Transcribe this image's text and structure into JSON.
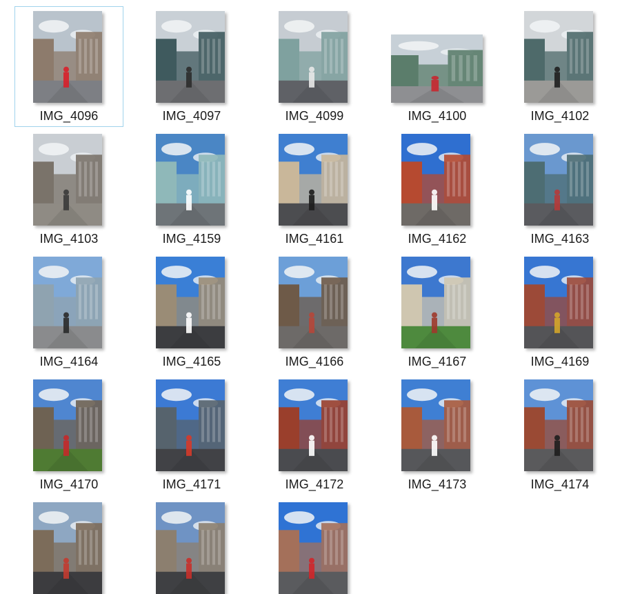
{
  "files": [
    {
      "label": "IMG_4096",
      "orientation": "portrait",
      "scene": "street-shopfront",
      "selected": true,
      "sky": "#b9c3cc",
      "ground": "#7d7f84",
      "building": "#8d7b6c",
      "accent": "#d8202a"
    },
    {
      "label": "IMG_4097",
      "orientation": "portrait",
      "scene": "street-people",
      "selected": false,
      "sky": "#c9d0d6",
      "ground": "#6d6e71",
      "building": "#3f5a5e",
      "accent": "#2c2c2c"
    },
    {
      "label": "IMG_4099",
      "orientation": "portrait",
      "scene": "glass-building",
      "selected": false,
      "sky": "#c6ccd2",
      "ground": "#5f6166",
      "building": "#7fa19f",
      "accent": "#e8e8e8"
    },
    {
      "label": "IMG_4100",
      "orientation": "landscape",
      "scene": "plaza-tree",
      "selected": false,
      "sky": "#c7d0d7",
      "ground": "#8e8f92",
      "building": "#5b7d6b",
      "accent": "#c8272f"
    },
    {
      "label": "IMG_4102",
      "orientation": "portrait",
      "scene": "street-car",
      "selected": false,
      "sky": "#d2d6d9",
      "ground": "#9b9a97",
      "building": "#4e6a6a",
      "accent": "#1f1f1f"
    },
    {
      "label": "IMG_4103",
      "orientation": "portrait",
      "scene": "sidewalk",
      "selected": false,
      "sky": "#c9ced3",
      "ground": "#8f8b84",
      "building": "#7a736a",
      "accent": "#3a3a3a"
    },
    {
      "label": "IMG_4159",
      "orientation": "portrait",
      "scene": "glass-canopy",
      "selected": false,
      "sky": "#4a86c5",
      "ground": "#6e7478",
      "building": "#8fb8b9",
      "accent": "#ffffff"
    },
    {
      "label": "IMG_4161",
      "orientation": "portrait",
      "scene": "bt-tower",
      "selected": false,
      "sky": "#3f7fd0",
      "ground": "#4c4d50",
      "building": "#c9b79a",
      "accent": "#1d1d1d"
    },
    {
      "label": "IMG_4162",
      "orientation": "portrait",
      "scene": "red-building",
      "selected": false,
      "sky": "#2f6fd0",
      "ground": "#6e6a66",
      "building": "#b64a30",
      "accent": "#ffffff"
    },
    {
      "label": "IMG_4163",
      "orientation": "portrait",
      "scene": "road-wide",
      "selected": false,
      "sky": "#6a98cf",
      "ground": "#5a5b5f",
      "building": "#4d6d73",
      "accent": "#b63a3a"
    },
    {
      "label": "IMG_4164",
      "orientation": "portrait",
      "scene": "walkers",
      "selected": false,
      "sky": "#7fa9d8",
      "ground": "#8a8b8d",
      "building": "#8fa3b0",
      "accent": "#2a2a2a"
    },
    {
      "label": "IMG_4165",
      "orientation": "portrait",
      "scene": "street-trees",
      "selected": false,
      "sky": "#3a7fd6",
      "ground": "#3c3d40",
      "building": "#9a8c76",
      "accent": "#ffffff"
    },
    {
      "label": "IMG_4166",
      "orientation": "portrait",
      "scene": "brick-street",
      "selected": false,
      "sky": "#6c9fd8",
      "ground": "#6d6a68",
      "building": "#6e5a48",
      "accent": "#b5473a"
    },
    {
      "label": "IMG_4167",
      "orientation": "portrait",
      "scene": "green-lawn",
      "selected": false,
      "sky": "#3d78cf",
      "ground": "#4e8a3e",
      "building": "#cfc6b0",
      "accent": "#9e3a2c"
    },
    {
      "label": "IMG_4169",
      "orientation": "portrait",
      "scene": "tower-square",
      "selected": false,
      "sky": "#3776d2",
      "ground": "#545457",
      "building": "#9c4a38",
      "accent": "#d4a52a"
    },
    {
      "label": "IMG_4170",
      "orientation": "portrait",
      "scene": "gate-ruin",
      "selected": false,
      "sky": "#4f86d0",
      "ground": "#4f7b33",
      "building": "#6e6253",
      "accent": "#c42a2a"
    },
    {
      "label": "IMG_4171",
      "orientation": "portrait",
      "scene": "road-lamps",
      "selected": false,
      "sky": "#3c7ad4",
      "ground": "#414246",
      "building": "#56636d",
      "accent": "#d63a2a"
    },
    {
      "label": "IMG_4172",
      "orientation": "portrait",
      "scene": "library-red",
      "selected": false,
      "sky": "#3f7ed4",
      "ground": "#4a4b4f",
      "building": "#9a3f2c",
      "accent": "#ffffff"
    },
    {
      "label": "IMG_4173",
      "orientation": "portrait",
      "scene": "st-pancras",
      "selected": false,
      "sky": "#3f7fd3",
      "ground": "#56575a",
      "building": "#a85a3c",
      "accent": "#ffffff"
    },
    {
      "label": "IMG_4174",
      "orientation": "portrait",
      "scene": "clock-tower",
      "selected": false,
      "sky": "#5e92d6",
      "ground": "#5a5a5c",
      "building": "#9a4a34",
      "accent": "#1e1e1e"
    },
    {
      "label": "",
      "orientation": "portrait",
      "scene": "kings-cross",
      "selected": false,
      "sky": "#8ea7c2",
      "ground": "#3c3c3f",
      "building": "#7c6c5a",
      "accent": "#c23b30"
    },
    {
      "label": "",
      "orientation": "portrait",
      "scene": "street-dusk",
      "selected": false,
      "sky": "#6f93c4",
      "ground": "#3f4043",
      "building": "#8c7f6f",
      "accent": "#c8302a"
    },
    {
      "label": "",
      "orientation": "portrait",
      "scene": "street-bus",
      "selected": false,
      "sky": "#2f73d4",
      "ground": "#5a5b5e",
      "building": "#a4705a",
      "accent": "#d0262a"
    }
  ]
}
